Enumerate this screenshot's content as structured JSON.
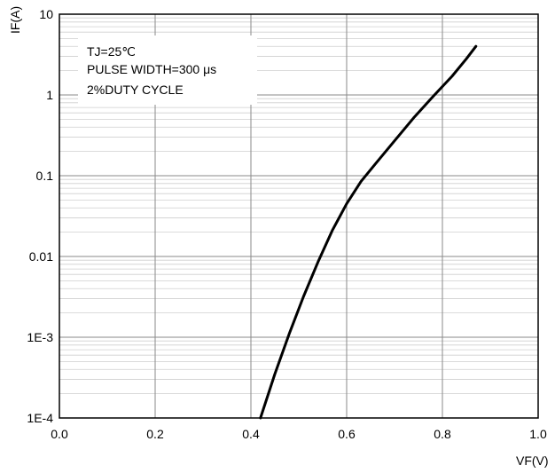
{
  "chart_data": {
    "type": "line",
    "xlabel": "VF(V)",
    "ylabel": "IF(A)",
    "xlim": [
      0.0,
      1.0
    ],
    "ylim": [
      0.0001,
      10
    ],
    "yscale": "log",
    "grid": true,
    "x_ticks": [
      0.0,
      0.2,
      0.4,
      0.6,
      0.8,
      1.0
    ],
    "x_tick_labels": [
      "0.0",
      "0.2",
      "0.4",
      "0.6",
      "0.8",
      "1.0"
    ],
    "y_ticks": [
      0.0001,
      0.001,
      0.01,
      0.1,
      1,
      10
    ],
    "y_tick_labels": [
      "1E-4",
      "1E-3",
      "0.01",
      "0.1",
      "1",
      "10"
    ],
    "annotations": [
      "TJ=25℃",
      "PULSE WIDTH=300 μs",
      "2%DUTY CYCLE"
    ],
    "series": [
      {
        "color": "#000000",
        "x": [
          0.42,
          0.45,
          0.48,
          0.51,
          0.54,
          0.57,
          0.6,
          0.63,
          0.66,
          0.7,
          0.74,
          0.78,
          0.82,
          0.85,
          0.87
        ],
        "y": [
          0.0001,
          0.00035,
          0.0011,
          0.0032,
          0.0085,
          0.021,
          0.045,
          0.085,
          0.14,
          0.27,
          0.52,
          0.95,
          1.7,
          2.8,
          4.0
        ]
      }
    ]
  }
}
